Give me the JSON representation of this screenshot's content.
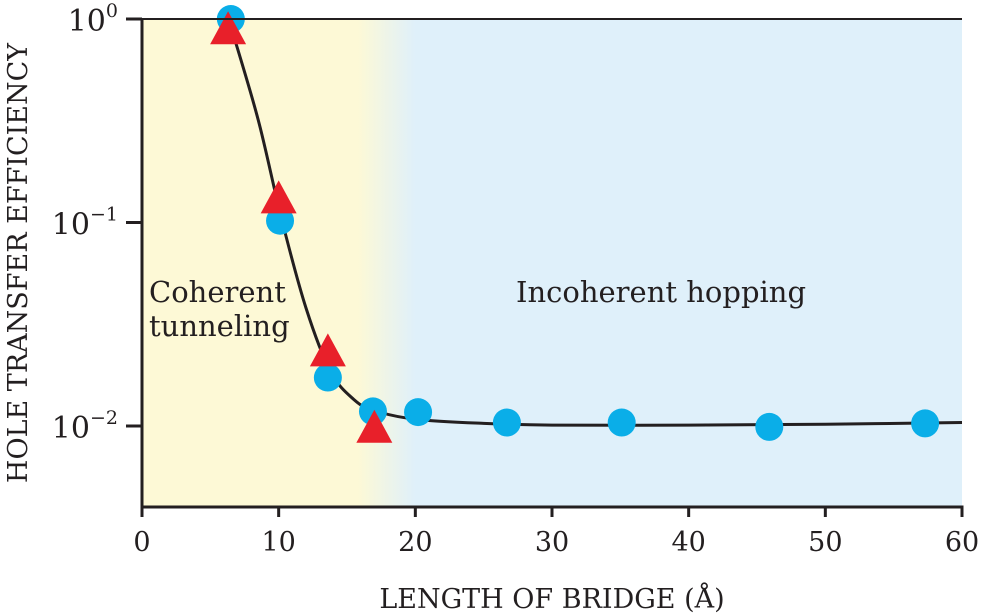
{
  "chart_data": {
    "type": "scatter",
    "title": "",
    "xlabel": "LENGTH OF BRIDGE (Å)",
    "ylabel": "HOLE TRANSFER EFFICIENCY",
    "xlim": [
      0,
      60
    ],
    "ylim": [
      0.0039,
      1.0
    ],
    "yscale": "log",
    "x_ticks": [
      0,
      10,
      20,
      30,
      40,
      50,
      60
    ],
    "y_ticks": [
      {
        "value": 1,
        "label": "10",
        "exp": "0"
      },
      {
        "value": 0.1,
        "label": "10",
        "exp": "−1"
      },
      {
        "value": 0.01,
        "label": "10",
        "exp": "−2"
      }
    ],
    "regions": [
      {
        "label_lines": [
          "Coherent",
          "tunneling"
        ],
        "from": 0,
        "to": 17,
        "color": "#fdf9d6"
      },
      {
        "label_lines": [
          "Incoherent hopping"
        ],
        "from": 20,
        "to": 60,
        "color": "#dff0fa"
      }
    ],
    "series": [
      {
        "name": "circles",
        "marker": "circle",
        "color": "#0aaee8",
        "x": [
          6.5,
          10.1,
          13.6,
          16.9,
          20.2,
          26.7,
          35.1,
          45.9,
          57.3
        ],
        "y": [
          1.0,
          0.102,
          0.0173,
          0.0118,
          0.0117,
          0.0104,
          0.0104,
          0.0099,
          0.0103
        ]
      },
      {
        "name": "triangles",
        "marker": "triangle",
        "color": "#e8202a",
        "x": [
          6.3,
          10.0,
          13.6,
          17.0
        ],
        "y": [
          0.88,
          0.13,
          0.023,
          0.0097
        ]
      },
      {
        "name": "fit",
        "marker": "line",
        "color": "#231f20",
        "x": [
          6.5,
          8.5,
          10.2,
          12.0,
          13.8,
          15.5,
          17.0,
          20.0,
          25.0,
          30.0,
          40.0,
          50.0,
          60.0
        ],
        "y": [
          0.92,
          0.32,
          0.105,
          0.038,
          0.0185,
          0.0135,
          0.0119,
          0.0108,
          0.0103,
          0.0101,
          0.0101,
          0.0102,
          0.0104
        ]
      }
    ]
  }
}
